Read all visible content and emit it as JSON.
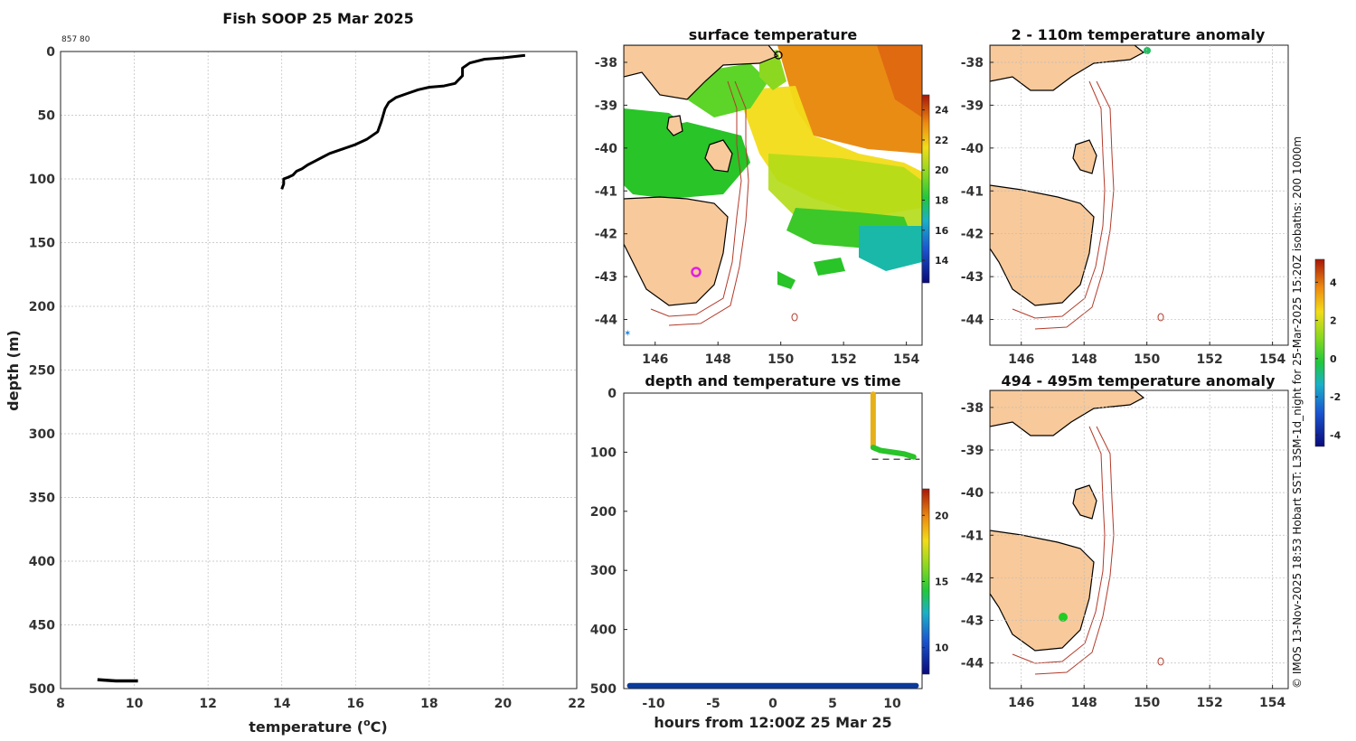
{
  "chart_data": [
    {
      "id": "profile",
      "type": "line",
      "title": "Fish SOOP 25 Mar 2025",
      "annotation": "857 80",
      "xlabel": "temperature (",
      "xlabel_unit": "C)",
      "ylabel": "depth (m)",
      "xlim": [
        8,
        22
      ],
      "ylim": [
        0,
        500
      ],
      "xticks": [
        8,
        10,
        12,
        14,
        16,
        18,
        20,
        22
      ],
      "yticks": [
        0,
        50,
        100,
        150,
        200,
        250,
        300,
        350,
        400,
        450,
        500
      ],
      "series": [
        {
          "name": "profile",
          "points": [
            [
              20.6,
              3
            ],
            [
              20.0,
              5
            ],
            [
              19.5,
              6
            ],
            [
              19.1,
              9
            ],
            [
              18.9,
              13
            ],
            [
              18.9,
              19
            ],
            [
              18.7,
              25
            ],
            [
              18.4,
              27
            ],
            [
              18.0,
              28
            ],
            [
              17.7,
              30
            ],
            [
              17.4,
              33
            ],
            [
              17.1,
              36
            ],
            [
              16.9,
              40
            ],
            [
              16.8,
              45
            ],
            [
              16.7,
              55
            ],
            [
              16.6,
              63
            ],
            [
              16.3,
              69
            ],
            [
              16.0,
              73
            ],
            [
              15.6,
              77
            ],
            [
              15.3,
              80
            ],
            [
              15.1,
              83
            ],
            [
              14.9,
              86
            ],
            [
              14.7,
              89
            ],
            [
              14.55,
              92
            ],
            [
              14.4,
              94
            ],
            [
              14.3,
              97
            ],
            [
              14.15,
              99
            ],
            [
              14.05,
              100
            ],
            [
              14.05,
              104
            ],
            [
              14.0,
              108
            ]
          ]
        },
        {
          "name": "deep",
          "points": [
            [
              9.0,
              493
            ],
            [
              9.5,
              494
            ],
            [
              10.1,
              494
            ]
          ]
        }
      ]
    },
    {
      "id": "sst",
      "type": "heatmap",
      "title": "surface temperature",
      "xticks": [
        146,
        148,
        150,
        152,
        154
      ],
      "yticks": [
        -38,
        -39,
        -40,
        -41,
        -42,
        -43,
        -44
      ],
      "xlim": [
        145,
        154.5
      ],
      "ylim": [
        -44.6,
        -37.6
      ],
      "colorbar": {
        "ticks": [
          14,
          16,
          18,
          20,
          22,
          24
        ],
        "range": [
          12.5,
          25
        ]
      }
    },
    {
      "id": "anom_shallow",
      "type": "heatmap",
      "title": "2 - 110m temperature anomaly",
      "xticks": [
        146,
        148,
        150,
        152,
        154
      ],
      "yticks": [
        -38,
        -39,
        -40,
        -41,
        -42,
        -43,
        -44
      ],
      "xlim": [
        145,
        154.5
      ],
      "ylim": [
        -44.6,
        -37.6
      ],
      "marker": {
        "lon": 150.05,
        "lat": -37.8
      }
    },
    {
      "id": "timeseries",
      "type": "scatter",
      "title": "depth and temperature vs time",
      "xlabel": "hours from 12:00Z 25 Mar 25",
      "xlim": [
        -12.5,
        12.5
      ],
      "ylim": [
        0,
        500
      ],
      "xticks": [
        -10,
        -5,
        0,
        5,
        10
      ],
      "yticks": [
        0,
        100,
        200,
        300,
        400,
        500
      ],
      "colorbar": {
        "ticks": [
          10,
          15,
          20
        ],
        "range": [
          8,
          22
        ]
      },
      "bottom_depth": 495,
      "ref_depth": 112
    },
    {
      "id": "anom_deep",
      "type": "heatmap",
      "title": "494 - 495m temperature anomaly",
      "xticks": [
        146,
        148,
        150,
        152,
        154
      ],
      "yticks": [
        -38,
        -39,
        -40,
        -41,
        -42,
        -43,
        -44
      ],
      "xlim": [
        145,
        154.5
      ],
      "ylim": [
        -44.6,
        -37.6
      ],
      "marker": {
        "lon": 147.3,
        "lat": -42.85
      }
    }
  ],
  "anomaly_colorbar": {
    "ticks": [
      4,
      2,
      0,
      -2,
      -4
    ],
    "range": [
      -4.6,
      5.2
    ]
  },
  "credit": "© IMOS 13-Nov-2025 18:53 Hobart SST: L3SM-1d_night for 25-Mar-2025 15:20Z isobaths: 200  1000m",
  "colors": {
    "land": "#f8c99a",
    "isobath": "#b33a2a",
    "marker_magenta": "#e020e0",
    "marker_green_anom": "#20c060",
    "marker_green_deep": "#22cc22"
  }
}
